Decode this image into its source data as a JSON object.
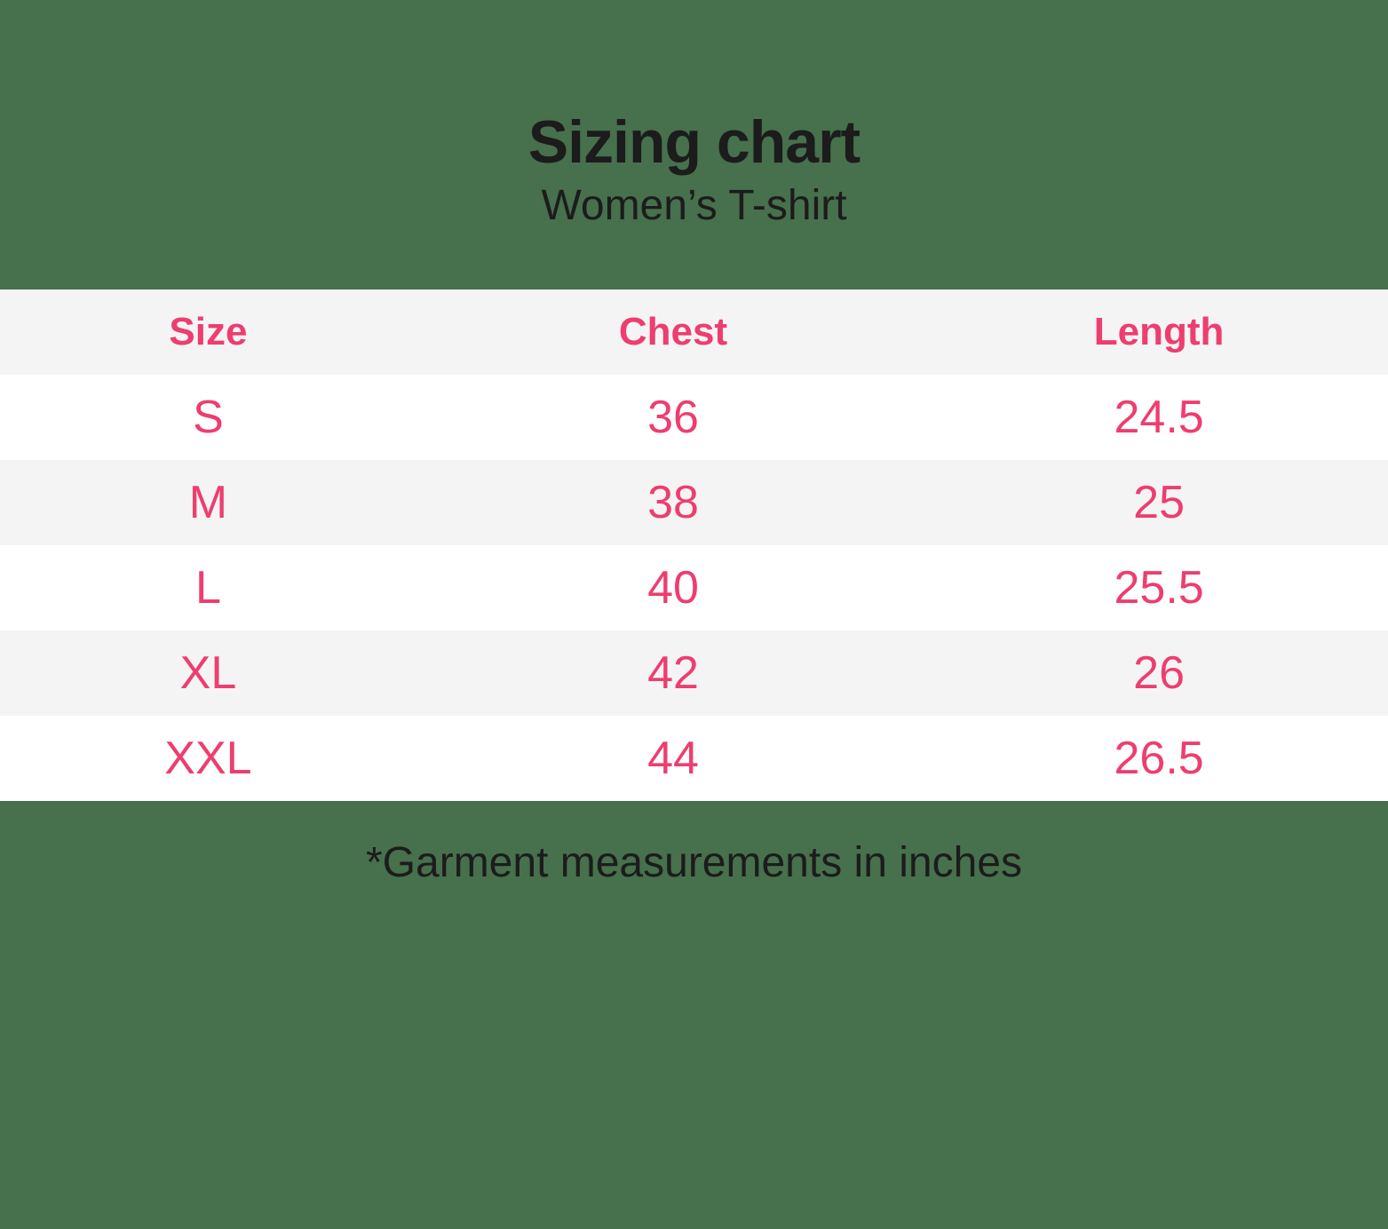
{
  "header": {
    "title": "Sizing chart",
    "subtitle": "Women’s T-shirt"
  },
  "chart_data": {
    "type": "table",
    "title": "Sizing chart",
    "subtitle": "Women’s T-shirt",
    "columns": [
      "Size",
      "Chest",
      "Length"
    ],
    "rows": [
      [
        "S",
        36,
        24.5
      ],
      [
        "M",
        38,
        25
      ],
      [
        "L",
        40,
        25.5
      ],
      [
        "XL",
        42,
        26
      ],
      [
        "XXL",
        44,
        26.5
      ]
    ],
    "units": "inches",
    "footnote": "*Garment measurements in inches"
  },
  "footer": {
    "note": "*Garment measurements in inches"
  },
  "colors": {
    "background_green": "#47704D",
    "accent_pink": "#EE3D6F",
    "stripe_gray": "#F4F4F5",
    "row_white": "#FFFFFF",
    "text_black": "#1C1C1C"
  }
}
